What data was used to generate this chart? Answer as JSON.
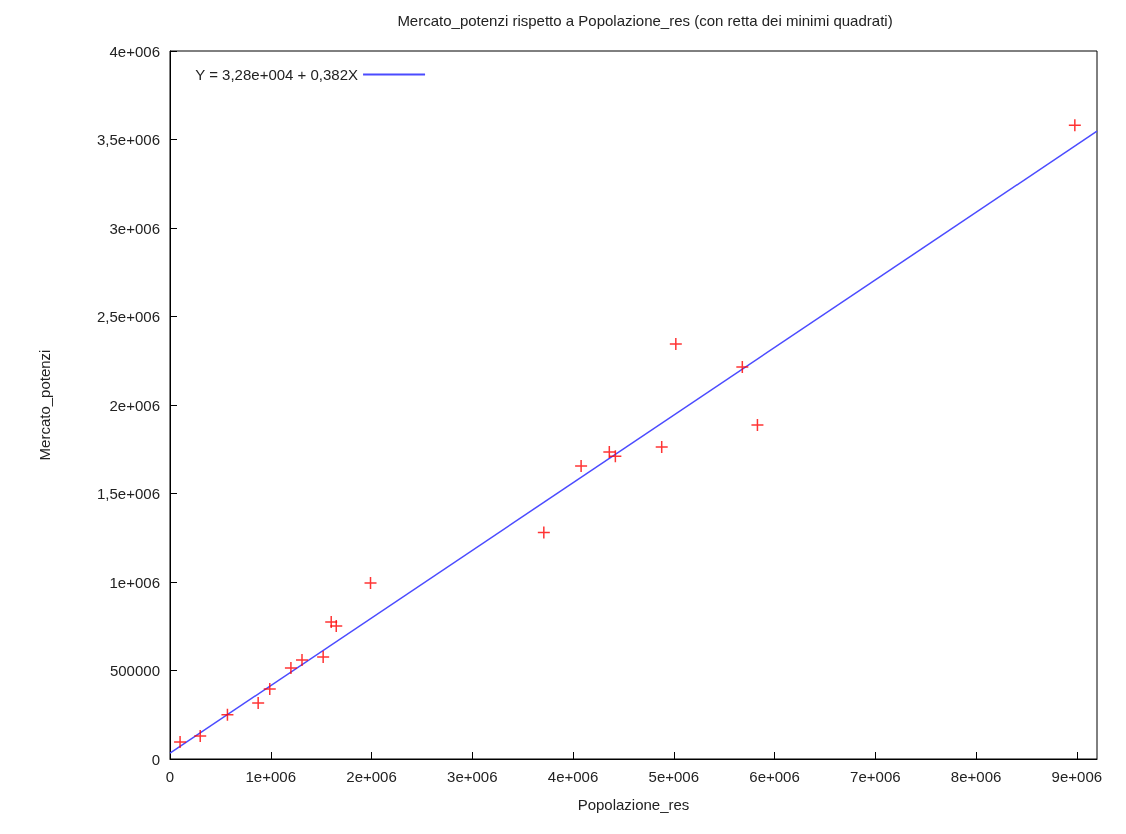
{
  "chart_data": {
    "type": "scatter",
    "title": "Mercato_potenzi rispetto a Popolazione_res (con retta dei minimi quadrati)",
    "xlabel": "Popolazione_res",
    "ylabel": "Mercato_potenzi",
    "xlim": [
      0,
      9200000
    ],
    "ylim": [
      0,
      4000000
    ],
    "xticks": [
      0,
      {
        "value": 1000000,
        "label": "1e+006"
      },
      {
        "value": 2000000,
        "label": "2e+006"
      },
      {
        "value": 3000000,
        "label": "3e+006"
      },
      {
        "value": 4000000,
        "label": "4e+006"
      },
      {
        "value": 5000000,
        "label": "5e+006"
      },
      {
        "value": 6000000,
        "label": "6e+006"
      },
      {
        "value": 7000000,
        "label": "7e+006"
      },
      {
        "value": 8000000,
        "label": "8e+006"
      },
      {
        "value": 9000000,
        "label": "9e+006"
      }
    ],
    "yticks": [
      0,
      500000,
      {
        "value": 1000000,
        "label": "1e+006"
      },
      {
        "value": 1500000,
        "label": "1,5e+006"
      },
      {
        "value": 2000000,
        "label": "2e+006"
      },
      {
        "value": 2500000,
        "label": "2,5e+006"
      },
      {
        "value": 3000000,
        "label": "3e+006"
      },
      {
        "value": 3500000,
        "label": "3,5e+006"
      },
      {
        "value": 4000000,
        "label": "4e+006"
      }
    ],
    "grid": false,
    "legend": "top left",
    "marker": "cross",
    "series": [
      {
        "color": "#ff0000",
        "x": [
          100000,
          300000,
          570000,
          875000,
          990000,
          1200000,
          1310000,
          1520000,
          1600000,
          1650000,
          1990000,
          3710000,
          4080000,
          4360000,
          4420000,
          4880000,
          5020000,
          5680000,
          5830000,
          8980000
        ],
        "values": [
          96000,
          130000,
          250000,
          316000,
          395000,
          514000,
          560000,
          576000,
          774000,
          751000,
          994000,
          1280000,
          1655000,
          1735000,
          1710000,
          1763000,
          2345000,
          2215000,
          1887000,
          3580000
        ]
      },
      {
        "type": "line",
        "name": "Y = 3,28e+004 + 0,382X",
        "color": "#4b4bff",
        "marker": "none",
        "x": [
          0,
          9200000
        ],
        "values": [
          33000,
          3547000
        ]
      }
    ]
  }
}
